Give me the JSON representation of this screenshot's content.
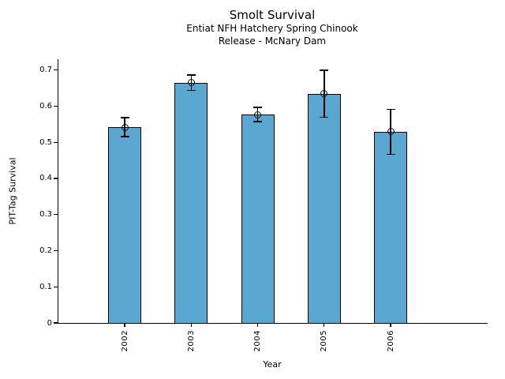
{
  "chart_data": {
    "type": "bar",
    "title": "Smolt Survival",
    "subtitle_line1": "Entiat NFH Hatchery Spring Chinook",
    "subtitle_line2": "Release - McNary Dam",
    "xlabel": "Year",
    "ylabel": "PIT-Tag Survival",
    "categories": [
      "2002",
      "2003",
      "2004",
      "2005",
      "2006"
    ],
    "values": [
      0.542,
      0.665,
      0.577,
      0.634,
      0.529
    ],
    "yerr": [
      0.026,
      0.021,
      0.02,
      0.065,
      0.062
    ],
    "ylim": [
      0,
      0.73
    ],
    "yticks": [
      0,
      0.1,
      0.2,
      0.3,
      0.4,
      0.5,
      0.6,
      0.7
    ],
    "ytick_labels": [
      "0",
      "0.1",
      "0.2",
      "0.3",
      "0.4",
      "0.5",
      "0.6",
      "0.7"
    ],
    "grid": false,
    "legend": null,
    "marker": "open-circle",
    "colors": {
      "bar_fill": "#5aa7d2",
      "bar_edge": "#000000",
      "error_bar": "#000000",
      "axis": "#000000",
      "text": "#000000",
      "background": "#ffffff"
    }
  }
}
